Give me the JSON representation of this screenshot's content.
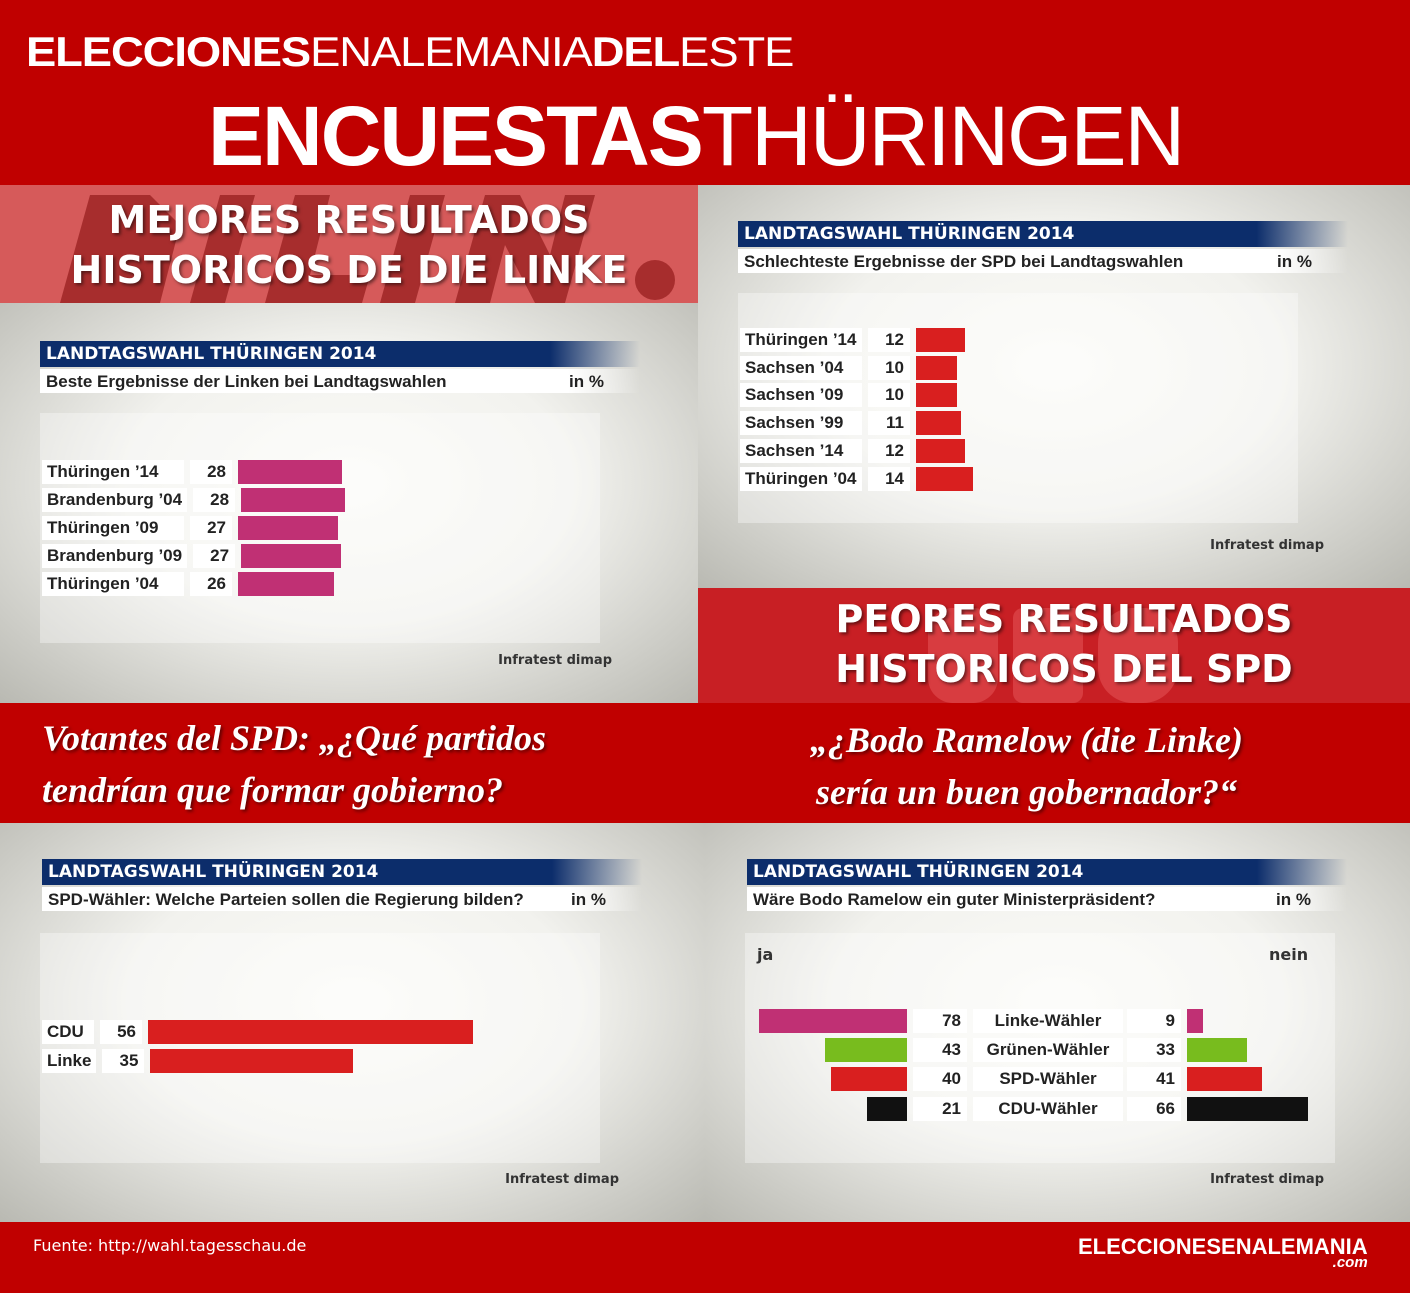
{
  "header": {
    "line1_bold": "ELECCIONES",
    "line1_thin": "ENALEMANIA",
    "line1_bold2": "DEL",
    "line1_thin2": "ESTE",
    "line2_bold": "ENCUESTAS",
    "line2_thin": "THÜRINGEN"
  },
  "banners": {
    "linke_title_1": "MEJORES RESULTADOS",
    "linke_title_2": "HISTORICOS DE DIE LINKE",
    "linke_watermark": "DIE LINKE.",
    "spd_title_1": "PEORES RESULTADOS",
    "spd_title_2": "HISTORICOS DEL SPD",
    "spd_watermark": "SPD"
  },
  "questions": {
    "spd_q_1": "Votantes del SPD: „¿Qué partidos",
    "spd_q_2": "tendrían que formar gobierno?",
    "ramelow_q_1": "„¿Bodo Ramelow (die Linke)",
    "ramelow_q_2": "sería un buen gobernador?“"
  },
  "footer": {
    "source": "Fuente: http://wahl.tagesschau.de",
    "logo": "ELECCIONESENALEMANIA",
    "logo_suffix": ".com"
  },
  "chart_data": [
    {
      "type": "bar",
      "title": "LANDTAGSWAHL THÜRINGEN 2014",
      "subtitle": "Beste Ergebnisse der Linken bei Landtagswahlen",
      "unit": "in %",
      "source": "Infratest dimap",
      "color": "#c03074",
      "categories": [
        "Thüringen ’14",
        "Brandenburg ’04",
        "Thüringen ’09",
        "Brandenburg ’09",
        "Thüringen ’04"
      ],
      "values": [
        28,
        28,
        27,
        27,
        26
      ]
    },
    {
      "type": "bar",
      "title": "LANDTAGSWAHL THÜRINGEN 2014",
      "subtitle": "Schlechteste Ergebnisse der SPD bei Landtagswahlen",
      "unit": "in %",
      "source": "Infratest dimap",
      "color": "#d91f1f",
      "categories": [
        "Thüringen ’14",
        "Sachsen ’04",
        "Sachsen ’09",
        "Sachsen ’99",
        "Sachsen ’14",
        "Thüringen ’04"
      ],
      "values": [
        12,
        10,
        10,
        11,
        12,
        14
      ]
    },
    {
      "type": "bar",
      "title": "LANDTAGSWAHL THÜRINGEN 2014",
      "subtitle": "SPD-Wähler: Welche Parteien sollen die Regierung bilden?",
      "unit": "in %",
      "source": "Infratest dimap",
      "color": "#d91f1f",
      "categories": [
        "CDU",
        "Linke"
      ],
      "values": [
        56,
        35
      ]
    },
    {
      "type": "bar",
      "title": "LANDTAGSWAHL THÜRINGEN 2014",
      "subtitle": "Wäre Bodo Ramelow ein guter Ministerpräsident?",
      "unit": "in %",
      "source": "Infratest dimap",
      "left_label": "ja",
      "right_label": "nein",
      "categories": [
        "Linke-Wähler",
        "Grünen-Wähler",
        "SPD-Wähler",
        "CDU-Wähler"
      ],
      "colors": [
        "#c03074",
        "#78bc1e",
        "#d91f1f",
        "#111111"
      ],
      "series": [
        {
          "name": "ja",
          "values": [
            78,
            43,
            40,
            21
          ]
        },
        {
          "name": "nein",
          "values": [
            9,
            33,
            41,
            66
          ]
        }
      ]
    }
  ]
}
